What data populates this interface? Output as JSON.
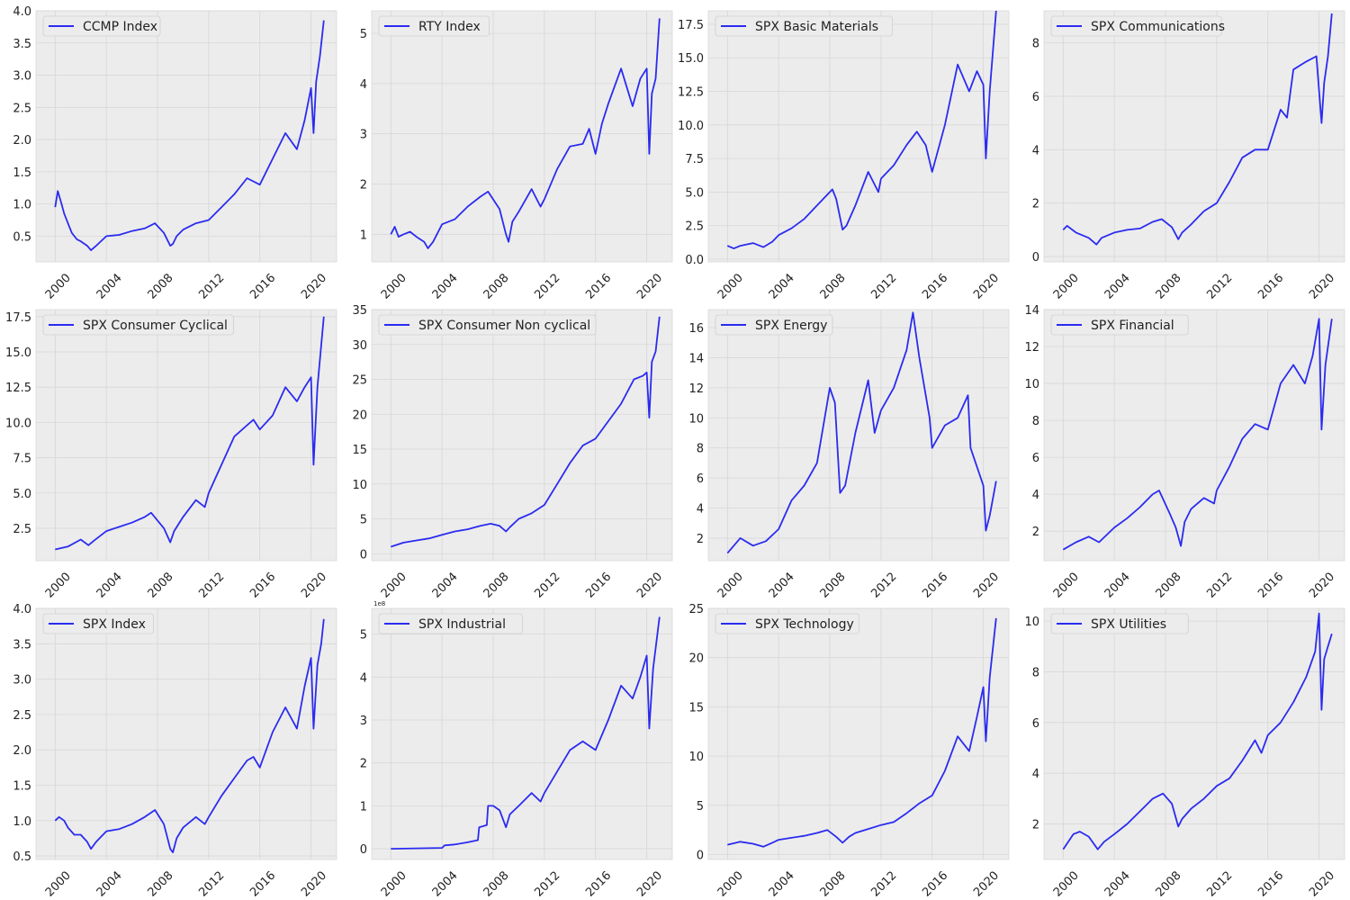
{
  "figure": {
    "background": "#ffffff",
    "axes_facecolor": "#ececec",
    "grid_color": "#d7d7d7",
    "line_color": "#2b2bf0",
    "legend_position": "upper-left",
    "x_ticks": [
      2000,
      2004,
      2008,
      2012,
      2016,
      2020
    ]
  },
  "chart_data": [
    {
      "type": "line",
      "name": "CCMP Index",
      "xlim": [
        1998.5,
        2022.0
      ],
      "ylim": [
        0.1,
        4.0
      ],
      "yticks": [
        0.5,
        1.0,
        1.5,
        2.0,
        2.5,
        3.0,
        3.5,
        4.0
      ],
      "ytick_labels": [
        "0.5",
        "1.0",
        "1.5",
        "2.0",
        "2.5",
        "3.0",
        "3.5",
        "4.0"
      ],
      "x": [
        2000.0,
        2000.2,
        2000.5,
        2000.7,
        2001.0,
        2001.3,
        2001.7,
        2002.0,
        2002.5,
        2002.8,
        2003.2,
        2004.0,
        2005.0,
        2006.0,
        2007.0,
        2007.8,
        2008.5,
        2009.0,
        2009.2,
        2009.5,
        2010.0,
        2011.0,
        2012.0,
        2013.0,
        2014.0,
        2015.0,
        2016.0,
        2017.0,
        2018.0,
        2018.9,
        2019.5,
        2020.0,
        2020.2,
        2020.4,
        2020.7,
        2021.0
      ],
      "y": [
        0.95,
        1.2,
        1.0,
        0.85,
        0.7,
        0.55,
        0.45,
        0.42,
        0.35,
        0.28,
        0.35,
        0.5,
        0.52,
        0.58,
        0.62,
        0.7,
        0.55,
        0.35,
        0.38,
        0.5,
        0.6,
        0.7,
        0.75,
        0.95,
        1.15,
        1.4,
        1.3,
        1.7,
        2.1,
        1.85,
        2.3,
        2.8,
        2.1,
        2.9,
        3.3,
        3.85
      ]
    },
    {
      "type": "line",
      "name": "RTY Index",
      "xlim": [
        1998.5,
        2022.0
      ],
      "ylim": [
        0.45,
        5.45
      ],
      "yticks": [
        1,
        2,
        3,
        4,
        5
      ],
      "ytick_labels": [
        "1",
        "2",
        "3",
        "4",
        "5"
      ],
      "x": [
        2000.0,
        2000.3,
        2000.6,
        2001.0,
        2001.5,
        2002.0,
        2002.6,
        2002.9,
        2003.3,
        2004.0,
        2005.0,
        2006.0,
        2007.0,
        2007.6,
        2008.5,
        2009.0,
        2009.2,
        2009.5,
        2010.0,
        2011.0,
        2011.7,
        2012.0,
        2013.0,
        2014.0,
        2015.0,
        2015.5,
        2016.0,
        2016.5,
        2017.0,
        2018.0,
        2018.9,
        2019.5,
        2020.0,
        2020.2,
        2020.4,
        2020.7,
        2021.0
      ],
      "y": [
        1.0,
        1.15,
        0.95,
        1.0,
        1.05,
        0.95,
        0.85,
        0.72,
        0.85,
        1.2,
        1.3,
        1.55,
        1.75,
        1.85,
        1.5,
        1.0,
        0.85,
        1.25,
        1.45,
        1.9,
        1.55,
        1.7,
        2.3,
        2.75,
        2.8,
        3.1,
        2.6,
        3.2,
        3.6,
        4.3,
        3.55,
        4.1,
        4.3,
        2.6,
        3.8,
        4.1,
        5.3
      ]
    },
    {
      "type": "line",
      "name": "SPX Basic Materials",
      "xlim": [
        1998.5,
        2022.0
      ],
      "ylim": [
        -0.2,
        18.5
      ],
      "yticks": [
        0.0,
        2.5,
        5.0,
        7.5,
        10.0,
        12.5,
        15.0,
        17.5
      ],
      "ytick_labels": [
        "0.0",
        "2.5",
        "5.0",
        "7.5",
        "10.0",
        "12.5",
        "15.0",
        "17.5"
      ],
      "x": [
        2000.0,
        2000.5,
        2001.0,
        2002.0,
        2002.8,
        2003.5,
        2004.0,
        2005.0,
        2006.0,
        2007.0,
        2008.2,
        2008.5,
        2009.0,
        2009.3,
        2010.0,
        2011.0,
        2011.8,
        2012.0,
        2013.0,
        2014.0,
        2014.8,
        2015.5,
        2016.0,
        2017.0,
        2018.0,
        2018.9,
        2019.5,
        2020.0,
        2020.2,
        2020.5,
        2021.0
      ],
      "y": [
        1.0,
        0.8,
        1.0,
        1.2,
        0.9,
        1.3,
        1.8,
        2.3,
        3.0,
        4.0,
        5.2,
        4.5,
        2.2,
        2.5,
        4.0,
        6.5,
        5.0,
        6.0,
        7.0,
        8.5,
        9.5,
        8.5,
        6.5,
        10.0,
        14.5,
        12.5,
        14.0,
        13.0,
        7.5,
        12.5,
        18.5
      ]
    },
    {
      "type": "line",
      "name": "SPX Communications",
      "xlim": [
        1998.5,
        2022.0
      ],
      "ylim": [
        -0.2,
        9.2
      ],
      "yticks": [
        0,
        2,
        4,
        6,
        8
      ],
      "ytick_labels": [
        "0",
        "2",
        "4",
        "6",
        "8"
      ],
      "x": [
        2000.0,
        2000.3,
        2001.0,
        2002.0,
        2002.6,
        2003.0,
        2004.0,
        2005.0,
        2006.0,
        2007.0,
        2007.7,
        2008.5,
        2009.0,
        2009.3,
        2010.0,
        2011.0,
        2012.0,
        2013.0,
        2014.0,
        2015.0,
        2016.0,
        2017.0,
        2017.5,
        2018.0,
        2019.0,
        2019.8,
        2020.2,
        2020.4,
        2020.7,
        2021.0
      ],
      "y": [
        1.0,
        1.15,
        0.9,
        0.7,
        0.45,
        0.7,
        0.9,
        1.0,
        1.05,
        1.3,
        1.4,
        1.1,
        0.65,
        0.9,
        1.2,
        1.7,
        2.0,
        2.8,
        3.7,
        4.0,
        4.0,
        5.5,
        5.2,
        7.0,
        7.3,
        7.5,
        5.0,
        6.5,
        7.5,
        9.1
      ]
    },
    {
      "type": "line",
      "name": "SPX Consumer Cyclical",
      "xlim": [
        1998.5,
        2022.0
      ],
      "ylim": [
        0.2,
        18.0
      ],
      "yticks": [
        2.5,
        5.0,
        7.5,
        10.0,
        12.5,
        15.0,
        17.5
      ],
      "ytick_labels": [
        "2.5",
        "5.0",
        "7.5",
        "10.0",
        "12.5",
        "15.0",
        "17.5"
      ],
      "x": [
        2000.0,
        2001.0,
        2002.0,
        2002.6,
        2003.0,
        2004.0,
        2005.0,
        2006.0,
        2007.0,
        2007.5,
        2008.5,
        2009.0,
        2009.3,
        2010.0,
        2011.0,
        2011.7,
        2012.0,
        2013.0,
        2014.0,
        2015.0,
        2015.5,
        2016.0,
        2017.0,
        2018.0,
        2018.9,
        2019.5,
        2020.0,
        2020.2,
        2020.5,
        2021.0
      ],
      "y": [
        1.0,
        1.2,
        1.7,
        1.3,
        1.6,
        2.3,
        2.6,
        2.9,
        3.3,
        3.6,
        2.5,
        1.5,
        2.3,
        3.3,
        4.5,
        4.0,
        5.0,
        7.0,
        9.0,
        9.8,
        10.2,
        9.5,
        10.5,
        12.5,
        11.5,
        12.5,
        13.2,
        7.0,
        12.5,
        17.5
      ]
    },
    {
      "type": "line",
      "name": "SPX Consumer Non cyclical",
      "xlim": [
        1998.5,
        2022.0
      ],
      "ylim": [
        -1.0,
        35.0
      ],
      "yticks": [
        0,
        5,
        10,
        15,
        20,
        25,
        30,
        35
      ],
      "ytick_labels": [
        "0",
        "5",
        "10",
        "15",
        "20",
        "25",
        "30",
        "35"
      ],
      "x": [
        2000.0,
        2001.0,
        2002.0,
        2003.0,
        2004.0,
        2005.0,
        2006.0,
        2007.0,
        2007.8,
        2008.5,
        2009.0,
        2009.3,
        2010.0,
        2011.0,
        2012.0,
        2013.0,
        2014.0,
        2015.0,
        2016.0,
        2017.0,
        2018.0,
        2019.0,
        2019.7,
        2020.0,
        2020.2,
        2020.4,
        2020.7,
        2021.0
      ],
      "y": [
        1.0,
        1.6,
        1.9,
        2.2,
        2.7,
        3.2,
        3.5,
        4.0,
        4.3,
        4.0,
        3.2,
        3.8,
        5.0,
        5.8,
        7.0,
        10.0,
        13.0,
        15.5,
        16.5,
        19.0,
        21.5,
        25.0,
        25.5,
        26.0,
        19.5,
        27.5,
        29.0,
        34.0
      ]
    },
    {
      "type": "line",
      "name": "SPX Energy",
      "xlim": [
        1998.5,
        2022.0
      ],
      "ylim": [
        0.5,
        17.2
      ],
      "yticks": [
        2,
        4,
        6,
        8,
        10,
        12,
        14,
        16
      ],
      "ytick_labels": [
        "2",
        "4",
        "6",
        "8",
        "10",
        "12",
        "14",
        "16"
      ],
      "x": [
        2000.0,
        2000.5,
        2001.0,
        2002.0,
        2003.0,
        2004.0,
        2005.0,
        2006.0,
        2007.0,
        2008.0,
        2008.4,
        2008.8,
        2009.2,
        2010.0,
        2011.0,
        2011.5,
        2012.0,
        2013.0,
        2014.0,
        2014.5,
        2015.0,
        2015.8,
        2016.0,
        2017.0,
        2018.0,
        2018.8,
        2019.0,
        2020.0,
        2020.2,
        2020.5,
        2021.0
      ],
      "y": [
        1.0,
        1.5,
        2.0,
        1.5,
        1.8,
        2.6,
        4.5,
        5.5,
        7.0,
        12.0,
        11.0,
        5.0,
        5.5,
        9.0,
        12.5,
        9.0,
        10.5,
        12.0,
        14.5,
        17.0,
        14.0,
        10.0,
        8.0,
        9.5,
        10.0,
        11.5,
        8.0,
        5.5,
        2.5,
        3.5,
        5.8
      ]
    },
    {
      "type": "line",
      "name": "SPX Financial",
      "xlim": [
        1998.5,
        2022.0
      ],
      "ylim": [
        0.4,
        14.0
      ],
      "yticks": [
        2,
        4,
        6,
        8,
        10,
        12,
        14
      ],
      "ytick_labels": [
        "2",
        "4",
        "6",
        "8",
        "10",
        "12",
        "14"
      ],
      "x": [
        2000.0,
        2001.0,
        2002.0,
        2002.8,
        2004.0,
        2005.0,
        2006.0,
        2007.0,
        2007.5,
        2008.3,
        2008.8,
        2009.2,
        2009.5,
        2010.0,
        2011.0,
        2011.8,
        2012.0,
        2013.0,
        2014.0,
        2015.0,
        2016.0,
        2017.0,
        2018.0,
        2018.9,
        2019.5,
        2020.0,
        2020.2,
        2020.5,
        2021.0
      ],
      "y": [
        1.0,
        1.4,
        1.7,
        1.4,
        2.2,
        2.7,
        3.3,
        4.0,
        4.2,
        3.0,
        2.2,
        1.2,
        2.5,
        3.2,
        3.8,
        3.5,
        4.2,
        5.5,
        7.0,
        7.8,
        7.5,
        10.0,
        11.0,
        10.0,
        11.5,
        13.5,
        7.5,
        11.0,
        13.5
      ]
    },
    {
      "type": "line",
      "name": "SPX Index",
      "xlim": [
        1998.5,
        2022.0
      ],
      "ylim": [
        0.45,
        4.0
      ],
      "yticks": [
        0.5,
        1.0,
        1.5,
        2.0,
        2.5,
        3.0,
        3.5,
        4.0
      ],
      "ytick_labels": [
        "0.5",
        "1.0",
        "1.5",
        "2.0",
        "2.5",
        "3.0",
        "3.5",
        "4.0"
      ],
      "x": [
        2000.0,
        2000.3,
        2000.7,
        2001.0,
        2001.5,
        2002.0,
        2002.5,
        2002.8,
        2003.2,
        2004.0,
        2005.0,
        2006.0,
        2007.0,
        2007.8,
        2008.5,
        2009.0,
        2009.2,
        2009.5,
        2010.0,
        2011.0,
        2011.7,
        2012.0,
        2013.0,
        2014.0,
        2015.0,
        2015.5,
        2016.0,
        2017.0,
        2018.0,
        2018.9,
        2019.5,
        2020.0,
        2020.2,
        2020.5,
        2020.8,
        2021.0
      ],
      "y": [
        1.0,
        1.05,
        1.0,
        0.9,
        0.8,
        0.8,
        0.7,
        0.6,
        0.7,
        0.85,
        0.88,
        0.95,
        1.05,
        1.15,
        0.95,
        0.6,
        0.55,
        0.75,
        0.9,
        1.05,
        0.95,
        1.05,
        1.35,
        1.6,
        1.85,
        1.9,
        1.75,
        2.25,
        2.6,
        2.3,
        2.9,
        3.3,
        2.3,
        3.2,
        3.5,
        3.85
      ]
    },
    {
      "type": "line",
      "name": "SPX Industrial",
      "xlim": [
        1998.5,
        2022.0
      ],
      "ylim": [
        -0.25,
        5.6
      ],
      "yticks": [
        0,
        1,
        2,
        3,
        4,
        5
      ],
      "ytick_labels": [
        "0",
        "1",
        "2",
        "3",
        "4",
        "5"
      ],
      "offset_label": "1e8",
      "x": [
        2000.0,
        2002.0,
        2004.0,
        2004.2,
        2005.0,
        2006.0,
        2006.8,
        2006.9,
        2007.5,
        2007.6,
        2008.0,
        2008.5,
        2009.0,
        2009.3,
        2010.0,
        2011.0,
        2011.7,
        2012.0,
        2013.0,
        2014.0,
        2015.0,
        2016.0,
        2017.0,
        2018.0,
        2018.9,
        2019.5,
        2020.0,
        2020.2,
        2020.5,
        2021.0
      ],
      "y": [
        0.0,
        0.01,
        0.02,
        0.08,
        0.1,
        0.15,
        0.2,
        0.5,
        0.55,
        1.0,
        1.0,
        0.9,
        0.5,
        0.8,
        1.0,
        1.3,
        1.1,
        1.3,
        1.8,
        2.3,
        2.5,
        2.3,
        3.0,
        3.8,
        3.5,
        4.0,
        4.5,
        2.8,
        4.2,
        5.4
      ]
    },
    {
      "type": "line",
      "name": "SPX Technology",
      "xlim": [
        1998.5,
        2022.0
      ],
      "ylim": [
        -0.5,
        25.0
      ],
      "yticks": [
        0,
        5,
        10,
        15,
        20,
        25
      ],
      "ytick_labels": [
        "0",
        "5",
        "10",
        "15",
        "20",
        "25"
      ],
      "x": [
        2000.0,
        2001.0,
        2002.0,
        2002.8,
        2003.5,
        2004.0,
        2005.0,
        2006.0,
        2007.0,
        2007.8,
        2008.5,
        2009.0,
        2009.5,
        2010.0,
        2011.0,
        2012.0,
        2013.0,
        2014.0,
        2015.0,
        2016.0,
        2017.0,
        2018.0,
        2018.9,
        2019.5,
        2020.0,
        2020.2,
        2020.5,
        2021.0
      ],
      "y": [
        1.0,
        1.3,
        1.1,
        0.8,
        1.2,
        1.5,
        1.7,
        1.9,
        2.2,
        2.5,
        1.8,
        1.2,
        1.8,
        2.2,
        2.6,
        3.0,
        3.3,
        4.2,
        5.2,
        6.0,
        8.5,
        12.0,
        10.5,
        14.0,
        17.0,
        11.5,
        18.0,
        24.0
      ]
    },
    {
      "type": "line",
      "name": "SPX Utilities",
      "xlim": [
        1998.5,
        2022.0
      ],
      "ylim": [
        0.6,
        10.5
      ],
      "yticks": [
        2,
        4,
        6,
        8,
        10
      ],
      "ytick_labels": [
        "2",
        "4",
        "6",
        "8",
        "10"
      ],
      "x": [
        2000.0,
        2000.8,
        2001.3,
        2002.0,
        2002.7,
        2003.2,
        2004.0,
        2005.0,
        2006.0,
        2007.0,
        2007.8,
        2008.5,
        2009.0,
        2009.3,
        2010.0,
        2011.0,
        2012.0,
        2013.0,
        2014.0,
        2015.0,
        2015.5,
        2016.0,
        2017.0,
        2018.0,
        2019.0,
        2019.7,
        2020.0,
        2020.2,
        2020.4,
        2020.7,
        2021.0
      ],
      "y": [
        1.0,
        1.6,
        1.7,
        1.5,
        1.0,
        1.3,
        1.6,
        2.0,
        2.5,
        3.0,
        3.2,
        2.8,
        1.9,
        2.2,
        2.6,
        3.0,
        3.5,
        3.8,
        4.5,
        5.3,
        4.8,
        5.5,
        6.0,
        6.8,
        7.8,
        8.8,
        10.3,
        6.5,
        8.5,
        9.0,
        9.5
      ]
    }
  ]
}
